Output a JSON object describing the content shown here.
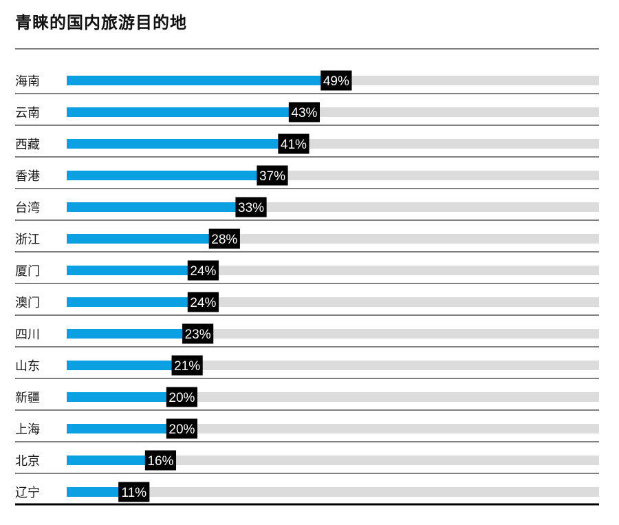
{
  "chart_data": {
    "type": "bar",
    "orientation": "horizontal",
    "title": "青睐的国内旅游目的地",
    "categories": [
      "海南",
      "云南",
      "西藏",
      "香港",
      "台湾",
      "浙江",
      "厦门",
      "澳门",
      "四川",
      "山东",
      "新疆",
      "上海",
      "北京",
      "辽宁"
    ],
    "values": [
      49,
      43,
      41,
      37,
      33,
      28,
      24,
      24,
      23,
      21,
      20,
      20,
      16,
      11
    ],
    "value_suffix": "%",
    "xlim": [
      0,
      100
    ],
    "grid": false,
    "legend": "none",
    "colors": {
      "bar": "#0aa0e2",
      "track": "#dcdcdc",
      "label_box": "#000000",
      "label_text": "#ffffff",
      "rule": "#000000"
    }
  }
}
